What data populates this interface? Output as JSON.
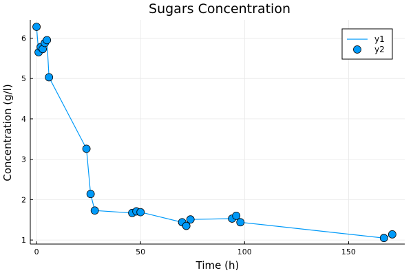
{
  "chart_data": {
    "type": "scatter",
    "title": "Sugars Concentration",
    "xlabel": "Time (h)",
    "ylabel": "Concentration (g/l)",
    "xlim": [
      -3,
      177
    ],
    "ylim": [
      0.9,
      6.45
    ],
    "x_ticks": [
      0,
      50,
      100,
      150
    ],
    "y_ticks": [
      1,
      2,
      3,
      4,
      5,
      6
    ],
    "grid": true,
    "legend": "top-right",
    "colors": {
      "series": "#009af9",
      "marker_edge": "#000000",
      "grid": "#e8e8e8",
      "axis": "#000000"
    },
    "series": [
      {
        "name": "y1",
        "kind": "line",
        "x": [
          0,
          1,
          2,
          3,
          4,
          5,
          6,
          24,
          26,
          28,
          46,
          48,
          50,
          70,
          72,
          74,
          94,
          96,
          98,
          167,
          171
        ],
        "values": [
          6.28,
          5.65,
          5.78,
          5.73,
          5.88,
          5.95,
          5.03,
          3.26,
          2.14,
          1.73,
          1.67,
          1.71,
          1.69,
          1.44,
          1.35,
          1.51,
          1.53,
          1.6,
          1.44,
          1.05,
          1.14
        ]
      },
      {
        "name": "y2",
        "kind": "scatter",
        "x": [
          0,
          1,
          2,
          3,
          4,
          5,
          6,
          24,
          26,
          28,
          46,
          48,
          50,
          70,
          72,
          74,
          94,
          96,
          98,
          167,
          171
        ],
        "values": [
          6.28,
          5.65,
          5.78,
          5.73,
          5.88,
          5.95,
          5.03,
          3.26,
          2.14,
          1.73,
          1.67,
          1.71,
          1.69,
          1.44,
          1.35,
          1.51,
          1.53,
          1.6,
          1.44,
          1.05,
          1.14
        ]
      }
    ]
  }
}
